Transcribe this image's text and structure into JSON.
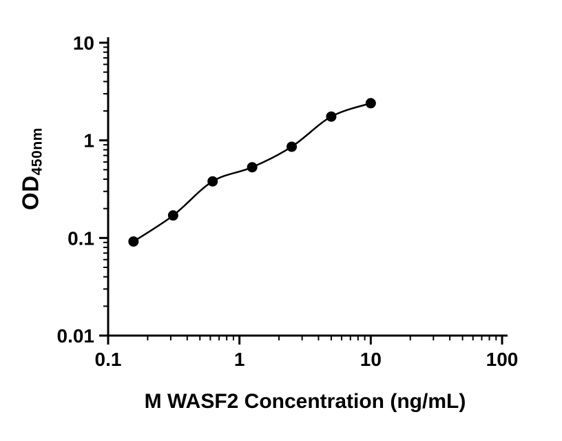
{
  "chart_data": {
    "type": "scatter",
    "title": "",
    "xlabel": "M WASF2 Concentration (ng/mL)",
    "ylabel_main": "OD",
    "ylabel_sub": "450nm",
    "x_scale": "log",
    "y_scale": "log",
    "xlim": [
      0.1,
      100
    ],
    "ylim": [
      0.01,
      10
    ],
    "x_ticks": [
      0.1,
      1,
      10,
      100
    ],
    "x_tick_labels": [
      "0.1",
      "1",
      "10",
      "100"
    ],
    "y_ticks": [
      0.01,
      0.1,
      1,
      10
    ],
    "y_tick_labels": [
      "0.01",
      "0.1",
      "1",
      "10"
    ],
    "grid": false,
    "legend": "none",
    "points": [
      {
        "x": 0.156,
        "y": 0.092
      },
      {
        "x": 0.3125,
        "y": 0.17
      },
      {
        "x": 0.625,
        "y": 0.38
      },
      {
        "x": 1.25,
        "y": 0.53
      },
      {
        "x": 2.5,
        "y": 0.86
      },
      {
        "x": 5,
        "y": 1.75
      },
      {
        "x": 10,
        "y": 2.4
      }
    ],
    "curve": "smooth-fit-through-points",
    "marker_color": "#000000",
    "line_color": "#000000",
    "axis_color": "#000000",
    "background_color": "#ffffff"
  }
}
